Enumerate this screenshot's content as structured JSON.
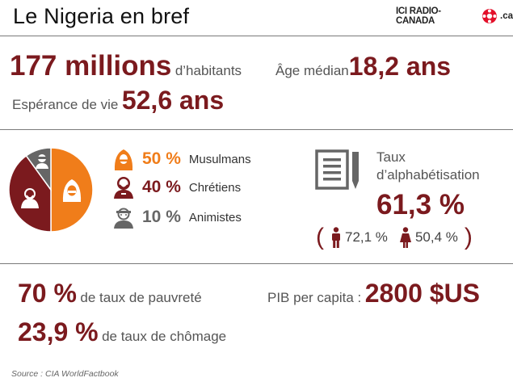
{
  "title": "Le Nigeria en bref",
  "logo": {
    "text": "ICI RADIO-CANADA",
    "suffix": ".ca"
  },
  "population": {
    "value": "177 millions",
    "label": "d’habitants"
  },
  "median_age": {
    "label": "Âge médian",
    "value": "18,2 ans"
  },
  "life_expectancy": {
    "label": "Espérance de vie",
    "value": "52,6 ans"
  },
  "religion": {
    "items": [
      {
        "pct": "50 %",
        "label": "Musulmans"
      },
      {
        "pct": "40 %",
        "label": "Chrétiens"
      },
      {
        "pct": "10 %",
        "label": "Animistes"
      }
    ]
  },
  "literacy": {
    "label_line1": "Taux",
    "label_line2": "d’alphabétisation",
    "value": "61,3 %",
    "male": "72,1 %",
    "female": "50,4 %"
  },
  "poverty": {
    "value": "70 %",
    "label": "de taux de pauvreté"
  },
  "unemployment": {
    "value": "23,9 %",
    "label": "de taux de chômage"
  },
  "gdp": {
    "label": "PIB per capita :",
    "value": "2800 $US"
  },
  "source": "Source : CIA WorldFactbook",
  "colors": {
    "muslim": "#f07d1a",
    "christian": "#7b1a1e",
    "animist": "#666666"
  },
  "chart_data": {
    "type": "pie",
    "categories": [
      "Musulmans",
      "Chrétiens",
      "Animistes"
    ],
    "values": [
      50,
      40,
      10
    ]
  }
}
